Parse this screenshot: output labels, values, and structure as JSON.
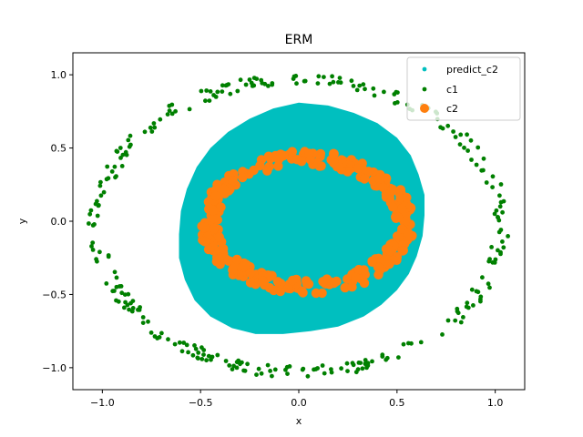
{
  "chart_data": {
    "type": "scatter",
    "title": "ERM",
    "xlabel": "x",
    "ylabel": "y",
    "xlim": [
      -1.15,
      1.15
    ],
    "ylim": [
      -1.15,
      1.15
    ],
    "xticks": [
      -1.0,
      -0.5,
      0.0,
      0.5,
      1.0
    ],
    "xtick_labels": [
      "−1.0",
      "−0.5",
      "0.0",
      "0.5",
      "1.0"
    ],
    "yticks": [
      -1.0,
      -0.5,
      0.0,
      0.5,
      1.0
    ],
    "ytick_labels": [
      "−1.0",
      "−0.5",
      "0.0",
      "0.5",
      "1.0"
    ],
    "grid": false,
    "legend_position": "top-right",
    "series": [
      {
        "name": "predict_c2",
        "color": "#00bfbf",
        "marker": "filled-region",
        "boundary": [
          [
            0.0,
            0.81
          ],
          [
            0.15,
            0.79
          ],
          [
            0.28,
            0.74
          ],
          [
            0.4,
            0.67
          ],
          [
            0.5,
            0.57
          ],
          [
            0.57,
            0.45
          ],
          [
            0.61,
            0.32
          ],
          [
            0.64,
            0.18
          ],
          [
            0.64,
            0.04
          ],
          [
            0.63,
            -0.1
          ],
          [
            0.6,
            -0.24
          ],
          [
            0.56,
            -0.36
          ],
          [
            0.5,
            -0.47
          ],
          [
            0.42,
            -0.57
          ],
          [
            0.33,
            -0.65
          ],
          [
            0.2,
            -0.72
          ],
          [
            0.06,
            -0.75
          ],
          [
            -0.08,
            -0.77
          ],
          [
            -0.22,
            -0.77
          ],
          [
            -0.34,
            -0.73
          ],
          [
            -0.45,
            -0.65
          ],
          [
            -0.53,
            -0.54
          ],
          [
            -0.58,
            -0.4
          ],
          [
            -0.61,
            -0.25
          ],
          [
            -0.61,
            -0.09
          ],
          [
            -0.6,
            0.07
          ],
          [
            -0.57,
            0.22
          ],
          [
            -0.52,
            0.37
          ],
          [
            -0.45,
            0.5
          ],
          [
            -0.36,
            0.61
          ],
          [
            -0.25,
            0.7
          ],
          [
            -0.13,
            0.77
          ]
        ]
      },
      {
        "name": "c1",
        "color": "#008000",
        "marker": "small-dot",
        "ring": {
          "center_x": 0.0,
          "center_y": -0.03,
          "radius_x": 1.03,
          "radius_y": 1.0,
          "jitter": 0.04
        },
        "point_count": 300
      },
      {
        "name": "c2",
        "color": "#ff7f0e",
        "marker": "large-dot",
        "ring": {
          "center_x": 0.04,
          "center_y": -0.01,
          "radius_x": 0.5,
          "radius_y": 0.44,
          "jitter": 0.05
        },
        "point_count": 360
      }
    ]
  }
}
